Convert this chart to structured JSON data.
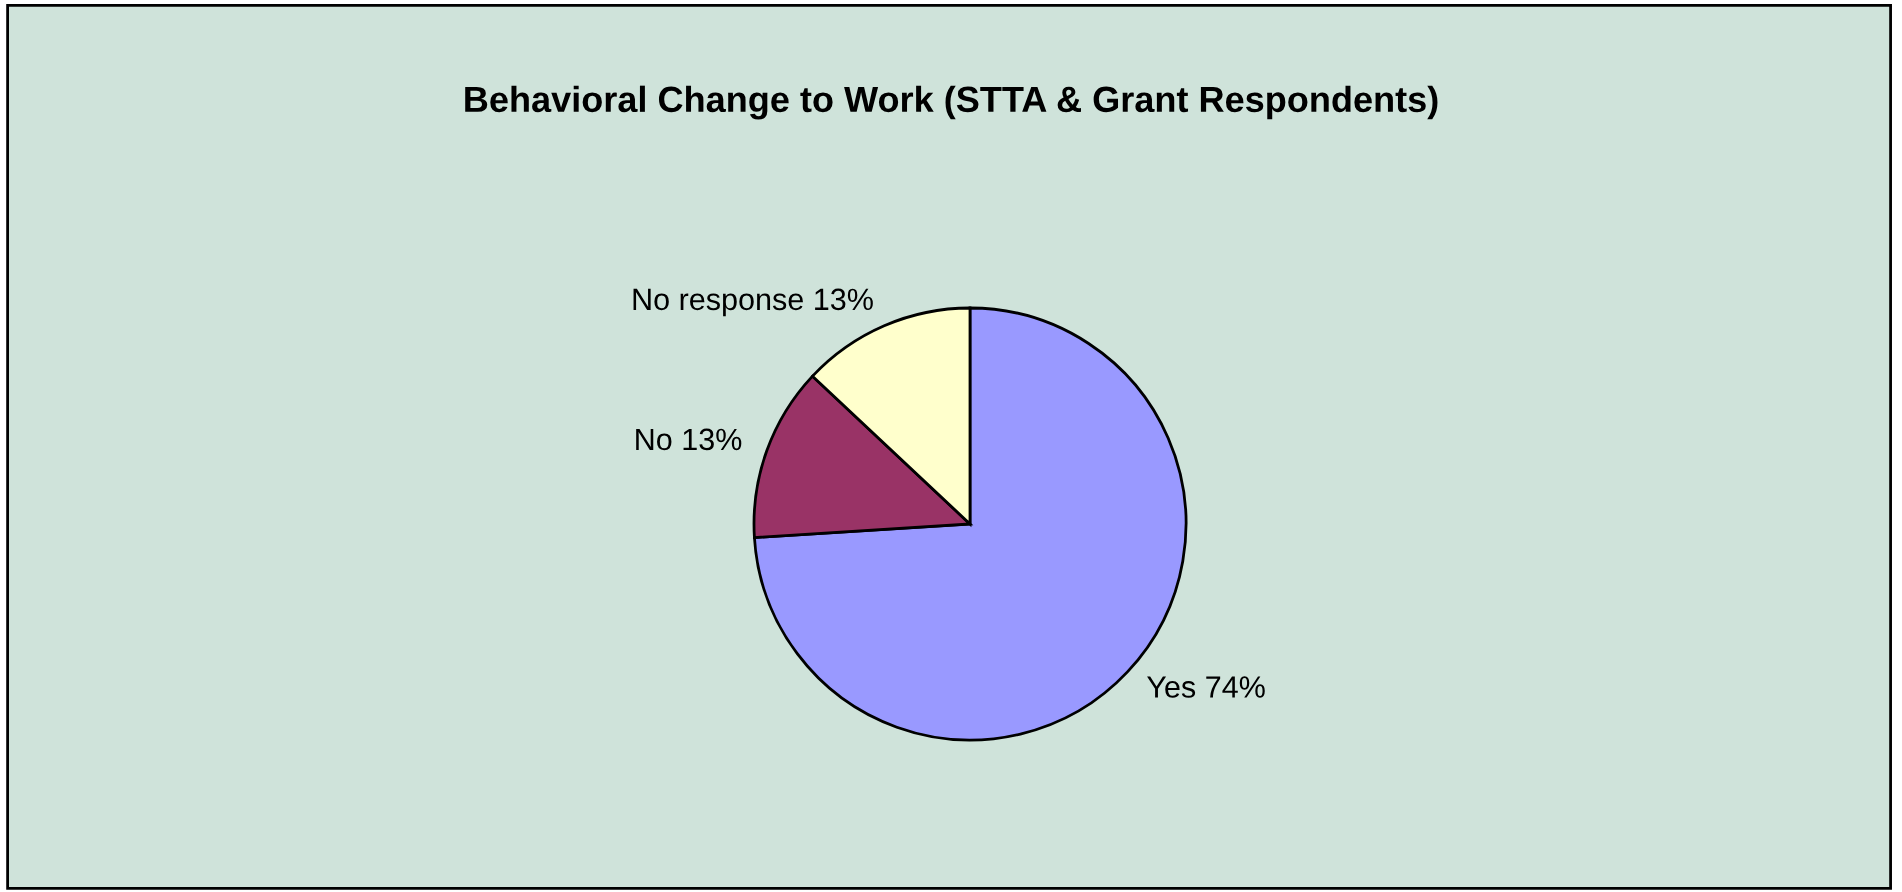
{
  "chart_data": {
    "type": "pie",
    "title": "Behavioral Change to Work (STTA & Grant Respondents)",
    "categories": [
      "Yes",
      "No",
      "No response"
    ],
    "values": [
      74,
      13,
      13
    ],
    "value_labels": [
      "74%",
      "13%",
      "13%"
    ],
    "colors": [
      "#9999ff",
      "#993366",
      "#ffffcc"
    ]
  }
}
